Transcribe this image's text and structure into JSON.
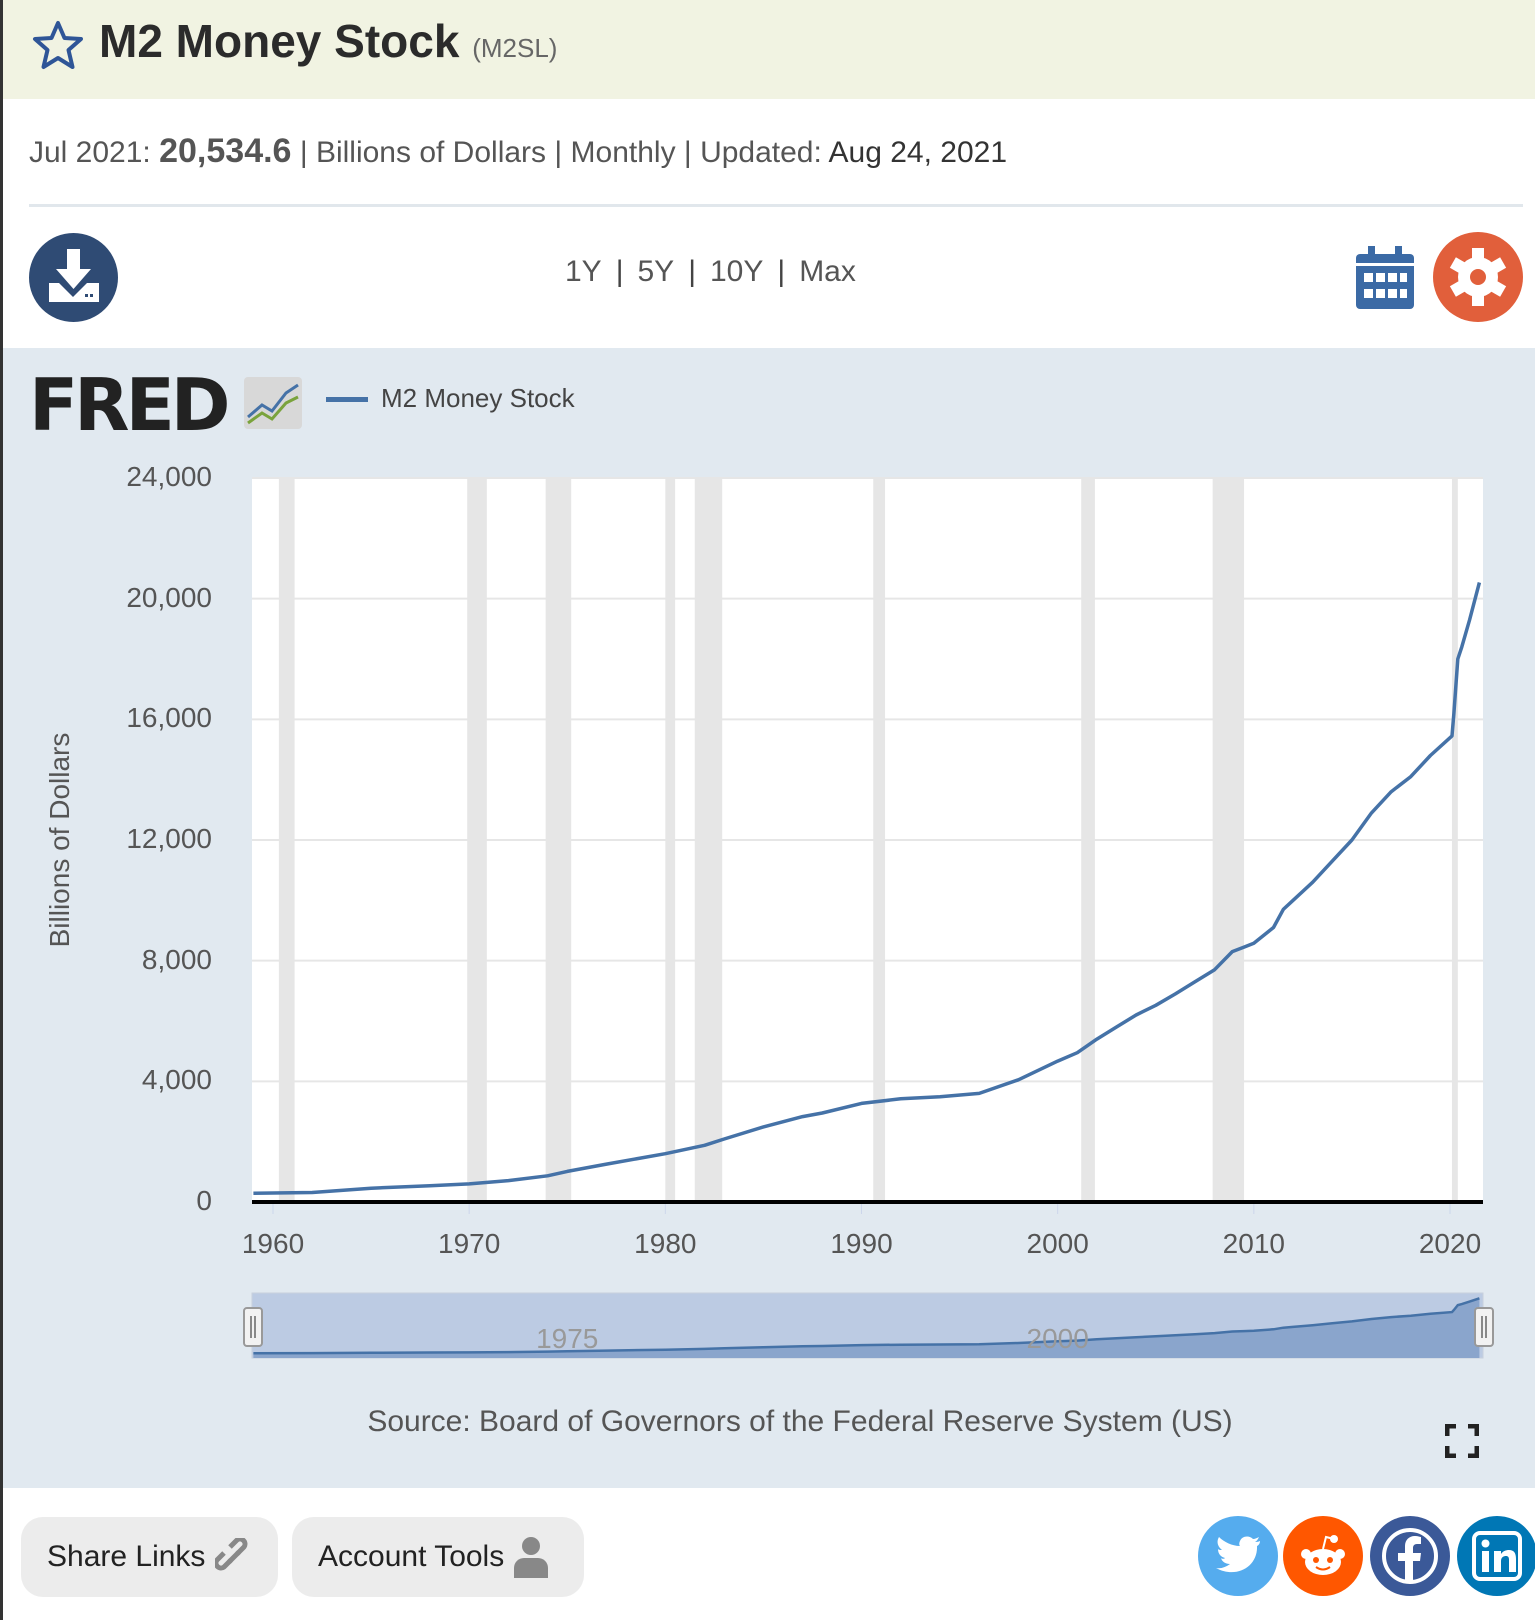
{
  "header": {
    "title": "M2 Money Stock",
    "series_id": "(M2SL)"
  },
  "info": {
    "date_label": "Jul 2021:",
    "value": "20,534.6",
    "units": "Billions of Dollars",
    "frequency": "Monthly",
    "updated_label": "Updated:",
    "updated_date": "Aug 24, 2021",
    "sep": "|"
  },
  "toolbar": {
    "ranges": [
      "1Y",
      "5Y",
      "10Y",
      "Max"
    ]
  },
  "logo": {
    "text": "FRED"
  },
  "colors": {
    "line": "#4572a7",
    "recession": "#e6e6e6",
    "gear": "#e15f3b",
    "download": "#2f4b74",
    "calendar": "#3b6aa5"
  },
  "chart_data": {
    "type": "line",
    "legend": "M2 Money Stock",
    "ylabel": "Billions of Dollars",
    "ylim": [
      0,
      24000
    ],
    "xlim": [
      1959.0,
      2021.5
    ],
    "yticks": [
      "24,000",
      "20,000",
      "16,000",
      "12,000",
      "8,000",
      "4,000",
      "0"
    ],
    "ytick_values": [
      24000,
      20000,
      16000,
      12000,
      8000,
      4000,
      0
    ],
    "xticks": [
      "1960",
      "1970",
      "1980",
      "1990",
      "2000",
      "2010",
      "2020"
    ],
    "recessions": [
      [
        1960.3,
        1961.1
      ],
      [
        1969.9,
        1970.9
      ],
      [
        1973.9,
        1975.2
      ],
      [
        1980.0,
        1980.5
      ],
      [
        1981.5,
        1982.9
      ],
      [
        1990.6,
        1991.2
      ],
      [
        2001.2,
        2001.9
      ],
      [
        2007.9,
        2009.5
      ],
      [
        2020.1,
        2020.4
      ]
    ],
    "x": [
      1959.0,
      1962,
      1965,
      1968,
      1970,
      1972,
      1974,
      1975,
      1977,
      1980,
      1982,
      1983,
      1985,
      1987,
      1988,
      1990,
      1992,
      1994,
      1996,
      1998,
      2000,
      2001,
      2002,
      2003,
      2004,
      2005,
      2006,
      2007,
      2008,
      2008.9,
      2009.5,
      2010,
      2011,
      2011.5,
      2012,
      2013,
      2014,
      2015,
      2016,
      2017,
      2018,
      2019,
      2020.1,
      2020.2,
      2020.4,
      2020.6,
      2021.0,
      2021.5
    ],
    "y": [
      287,
      314,
      459,
      540,
      601,
      710,
      870,
      1016,
      1255,
      1600,
      1880,
      2090,
      2490,
      2830,
      2950,
      3270,
      3420,
      3490,
      3600,
      4050,
      4670,
      4950,
      5400,
      5800,
      6200,
      6520,
      6900,
      7300,
      7700,
      8300,
      8450,
      8580,
      9100,
      9700,
      10000,
      10600,
      11300,
      12000,
      12900,
      13600,
      14100,
      14800,
      15450,
      16200,
      18000,
      18400,
      19300,
      20534.6
    ],
    "navigator_labels": [
      "1975",
      "2000"
    ]
  },
  "source": "Source: Board of Governors of the Federal Reserve System (US)",
  "footer": {
    "share_links": "Share Links",
    "account_tools": "Account Tools"
  }
}
